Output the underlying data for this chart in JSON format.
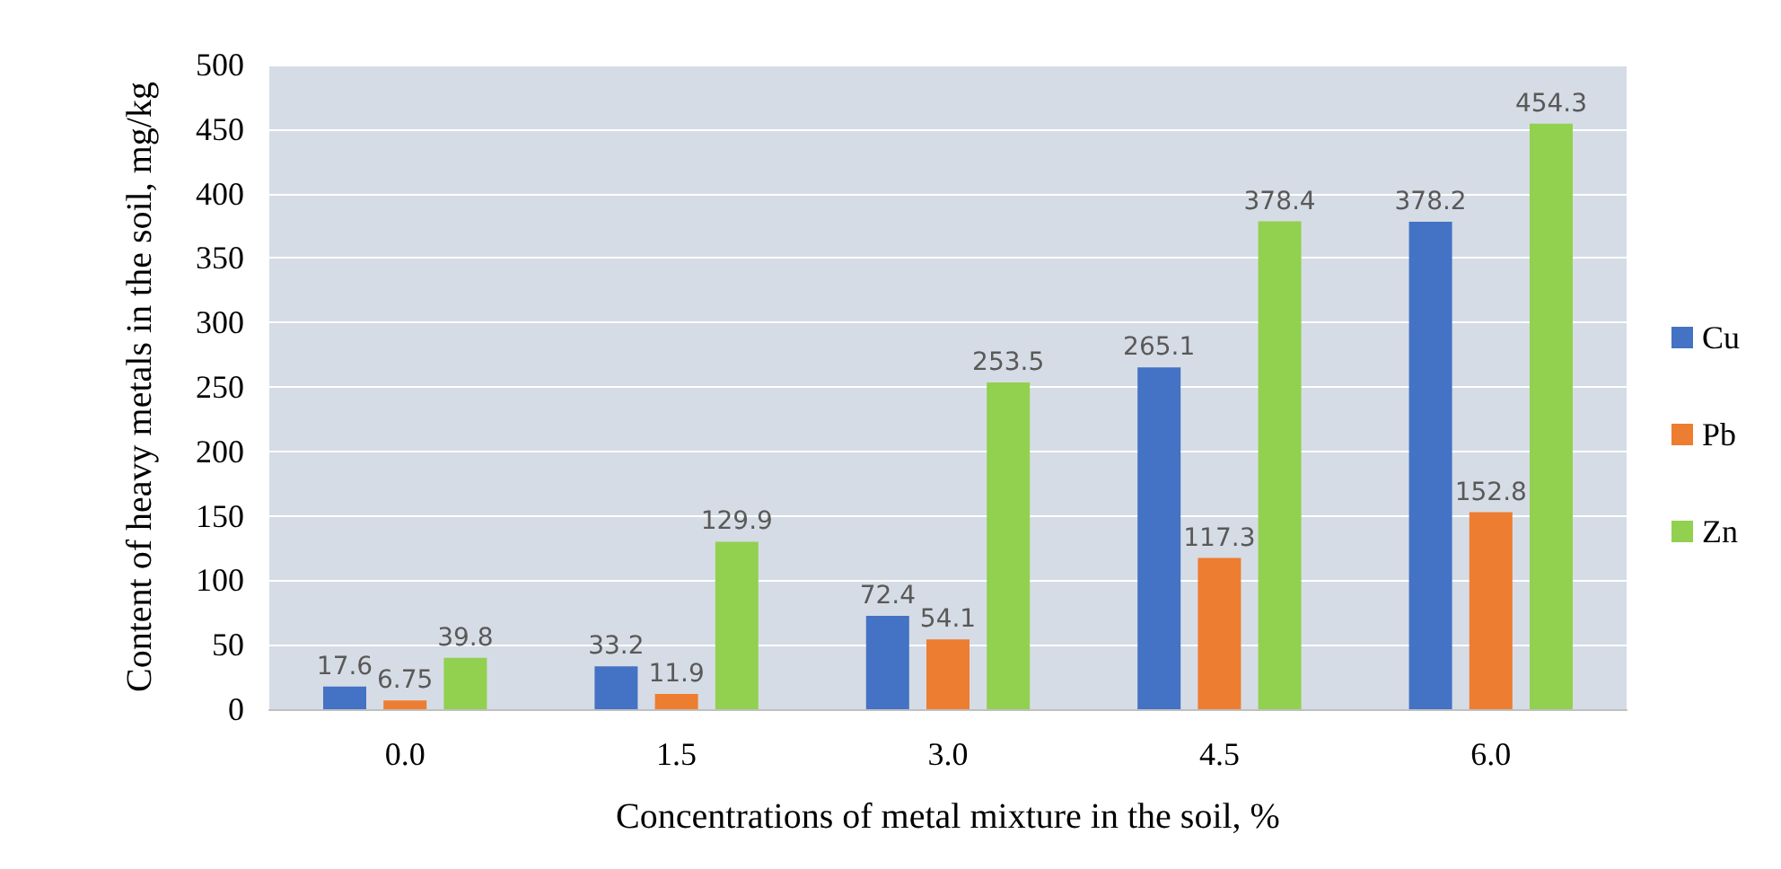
{
  "chart_data": {
    "type": "bar",
    "xlabel": "Concentrations of metal mixture in the soil, %",
    "ylabel": "Content of heavy metals in the soil, mg/kg",
    "categories": [
      "0.0",
      "1.5",
      "3.0",
      "4.5",
      "6.0"
    ],
    "series": [
      {
        "name": "Cu",
        "color": "#4472c4",
        "values": [
          17.6,
          33.2,
          72.4,
          265.1,
          378.2
        ]
      },
      {
        "name": "Pb",
        "color": "#ed7d31",
        "values": [
          6.75,
          11.9,
          54.1,
          117.3,
          152.8
        ]
      },
      {
        "name": "Zn",
        "color": "#92d050",
        "values": [
          39.8,
          129.9,
          253.5,
          378.4,
          454.3
        ]
      }
    ],
    "ylim": [
      0,
      500
    ],
    "yticks": [
      0,
      50,
      100,
      150,
      200,
      250,
      300,
      350,
      400,
      450,
      500
    ],
    "grid": "y",
    "legend": "right",
    "data_labels": true
  }
}
